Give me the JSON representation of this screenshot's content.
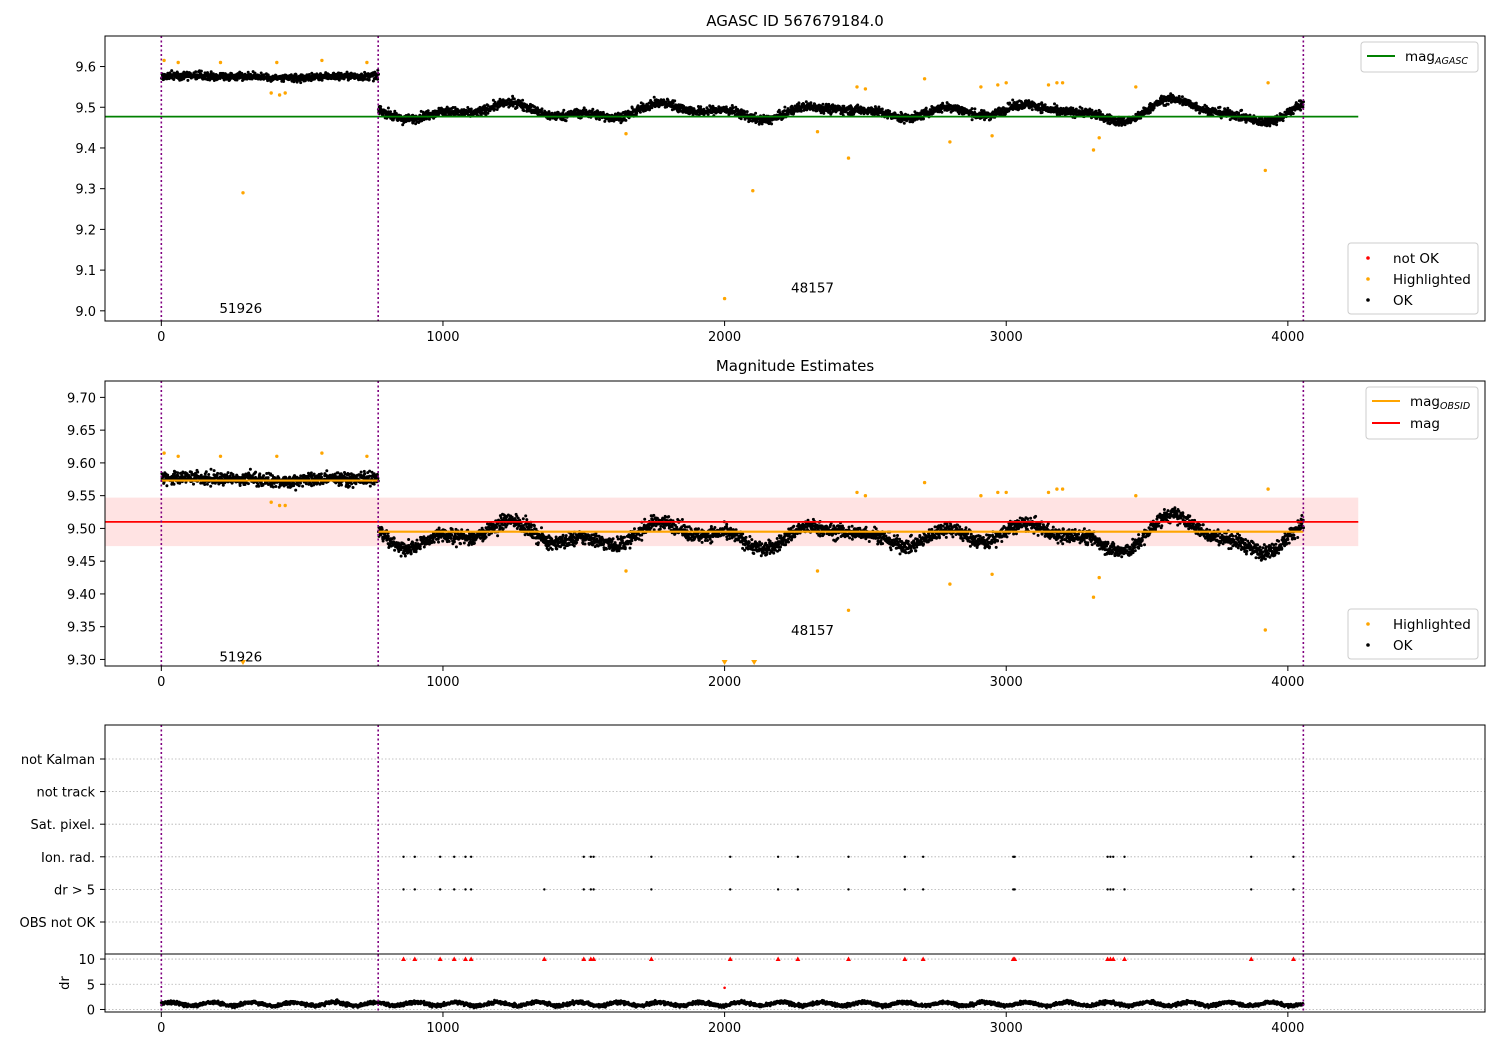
{
  "chart_data": [
    {
      "type": "scatter",
      "title": "AGASC ID 567679184.0",
      "xlim": [
        -200,
        4700
      ],
      "ylim": [
        8.975,
        9.675
      ],
      "x_ticks": [
        0,
        1000,
        2000,
        3000,
        4000
      ],
      "y_ticks": [
        9.0,
        9.1,
        9.2,
        9.3,
        9.4,
        9.5,
        9.6
      ],
      "vlines": [
        0,
        770,
        4055
      ],
      "hline": {
        "name": "mag",
        "subscript": "AGASC",
        "value": 9.477,
        "x_end": 4250,
        "color": "#008000"
      },
      "segments": [
        {
          "x_start": 0,
          "x_end": 770,
          "center": 9.575,
          "spread": 0.025
        },
        {
          "x_start": 770,
          "x_end": 4055,
          "center": 9.49,
          "spread": 0.03
        }
      ],
      "annotations": [
        {
          "text": "51926",
          "x": 300,
          "y": 9.0
        },
        {
          "text": "48157",
          "x": 2330,
          "y": 9.05
        }
      ],
      "highlighted_points": [
        [
          10,
          9.615
        ],
        [
          60,
          9.61
        ],
        [
          210,
          9.61
        ],
        [
          290,
          9.29
        ],
        [
          390,
          9.535
        ],
        [
          410,
          9.61
        ],
        [
          420,
          9.53
        ],
        [
          440,
          9.535
        ],
        [
          570,
          9.615
        ],
        [
          730,
          9.61
        ],
        [
          1650,
          9.435
        ],
        [
          2000,
          9.03
        ],
        [
          2100,
          9.295
        ],
        [
          2330,
          9.44
        ],
        [
          2440,
          9.375
        ],
        [
          2470,
          9.55
        ],
        [
          2500,
          9.545
        ],
        [
          2710,
          9.57
        ],
        [
          2800,
          9.415
        ],
        [
          2910,
          9.55
        ],
        [
          2950,
          9.43
        ],
        [
          2970,
          9.555
        ],
        [
          3000,
          9.56
        ],
        [
          3150,
          9.555
        ],
        [
          3180,
          9.56
        ],
        [
          3200,
          9.56
        ],
        [
          3310,
          9.395
        ],
        [
          3330,
          9.425
        ],
        [
          3460,
          9.55
        ],
        [
          3920,
          9.345
        ],
        [
          3930,
          9.56
        ]
      ],
      "legend_lines": [
        {
          "name": "mag",
          "subscript": "AGASC",
          "color": "#008000"
        }
      ],
      "legend_points": [
        {
          "name": "not OK",
          "color": "#ff0000"
        },
        {
          "name": "Highlighted",
          "color": "#ffa500"
        },
        {
          "name": "OK",
          "color": "#000000"
        }
      ]
    },
    {
      "type": "scatter",
      "title": "Magnitude Estimates",
      "xlim": [
        -200,
        4700
      ],
      "ylim": [
        9.29,
        9.725
      ],
      "x_ticks": [
        0,
        1000,
        2000,
        3000,
        4000
      ],
      "y_ticks": [
        9.3,
        9.35,
        9.4,
        9.45,
        9.5,
        9.55,
        9.6,
        9.65,
        9.7
      ],
      "vlines": [
        0,
        770,
        4055
      ],
      "mag_line": {
        "name": "mag",
        "value": 9.51,
        "band": [
          9.473,
          9.547
        ],
        "x_end": 4250,
        "color": "#ff0000"
      },
      "obsid_lines": [
        {
          "x_start": 0,
          "x_end": 770,
          "value": 9.573
        },
        {
          "x_start": 770,
          "x_end": 4055,
          "value": 9.495
        }
      ],
      "obsid_color": "#ffa500",
      "annotations": [
        {
          "text": "51926",
          "x": 300,
          "y": 9.3
        },
        {
          "text": "48157",
          "x": 2330,
          "y": 9.34
        }
      ],
      "highlighted_points": [
        [
          10,
          9.615
        ],
        [
          60,
          9.61
        ],
        [
          210,
          9.61
        ],
        [
          390,
          9.54
        ],
        [
          410,
          9.61
        ],
        [
          420,
          9.535
        ],
        [
          440,
          9.535
        ],
        [
          570,
          9.615
        ],
        [
          730,
          9.61
        ],
        [
          1650,
          9.435
        ],
        [
          2330,
          9.435
        ],
        [
          2440,
          9.375
        ],
        [
          2470,
          9.555
        ],
        [
          2500,
          9.55
        ],
        [
          2710,
          9.57
        ],
        [
          2800,
          9.415
        ],
        [
          2910,
          9.55
        ],
        [
          2950,
          9.43
        ],
        [
          2970,
          9.555
        ],
        [
          3000,
          9.555
        ],
        [
          3150,
          9.555
        ],
        [
          3180,
          9.56
        ],
        [
          3200,
          9.56
        ],
        [
          3310,
          9.395
        ],
        [
          3330,
          9.425
        ],
        [
          3460,
          9.55
        ],
        [
          3920,
          9.345
        ],
        [
          3930,
          9.56
        ]
      ],
      "off_scale_markers": [
        290,
        2000,
        2105
      ],
      "legend_lines": [
        {
          "name": "mag",
          "subscript": "OBSID",
          "color": "#ffa500"
        },
        {
          "name": "mag",
          "subscript": "",
          "color": "#ff0000"
        }
      ],
      "legend_points": [
        {
          "name": "Highlighted",
          "color": "#ffa500"
        },
        {
          "name": "OK",
          "color": "#000000"
        }
      ]
    },
    {
      "type": "scatter",
      "xlim": [
        -200,
        4700
      ],
      "x_ticks": [
        0,
        1000,
        2000,
        3000,
        4000
      ],
      "vlines": [
        0,
        770,
        4055
      ],
      "flag_rows": [
        "not Kalman",
        "not track",
        "Sat. pixel.",
        "Ion. rad.",
        "dr > 5",
        "OBS not OK"
      ],
      "flags": {
        "Ion. rad.": [
          860,
          900,
          990,
          1040,
          1080,
          1100,
          1500,
          1525,
          1535,
          1740,
          2020,
          2190,
          2260,
          2440,
          2640,
          2705,
          3025,
          3030,
          3360,
          3370,
          3380,
          3420,
          3870,
          4020
        ],
        "dr > 5": [
          860,
          900,
          990,
          1040,
          1080,
          1100,
          1360,
          1500,
          1525,
          1535,
          1740,
          2020,
          2190,
          2260,
          2440,
          2640,
          2705,
          3025,
          3030,
          3360,
          3370,
          3380,
          3420,
          3870,
          4020
        ]
      },
      "dr_ylabel": "dr",
      "dr_ylim": [
        -0.5,
        11
      ],
      "dr_ticks": [
        0,
        5,
        10
      ],
      "dr_clipped_x": [
        860,
        900,
        990,
        1040,
        1080,
        1100,
        1360,
        1500,
        1525,
        1535,
        1740,
        2020,
        2190,
        2260,
        2440,
        2640,
        2705,
        3025,
        3030,
        3360,
        3370,
        3380,
        3420,
        3870,
        4020
      ],
      "dr_outlier": [
        2000,
        4.3
      ],
      "dr_base": {
        "x_start": 0,
        "x_end": 4055,
        "center": 1.1,
        "spread": 0.6
      }
    }
  ]
}
